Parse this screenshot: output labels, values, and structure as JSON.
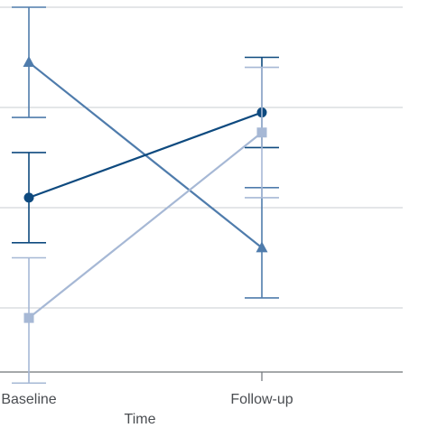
{
  "chart_data": {
    "type": "line",
    "categories": [
      "Baseline",
      "Follow-up"
    ],
    "xlabel": "Time",
    "ylabel": "",
    "ylim": [
      0,
      4
    ],
    "grid": true,
    "series": [
      {
        "color": "#4f7cac",
        "marker": "triangle",
        "values": [
          3.45,
          1.6
        ],
        "err_low": [
          2.9,
          1.1
        ],
        "err_high": [
          4.0,
          2.2
        ]
      },
      {
        "color": "#0e4a7f",
        "marker": "circle",
        "values": [
          2.1,
          2.95
        ],
        "err_low": [
          1.65,
          2.6
        ],
        "err_high": [
          2.55,
          3.5
        ]
      },
      {
        "color": "#a6b8d5",
        "marker": "square",
        "values": [
          0.9,
          2.75
        ],
        "err_low": [
          0.25,
          2.1
        ],
        "err_high": [
          1.5,
          3.4
        ]
      }
    ]
  }
}
